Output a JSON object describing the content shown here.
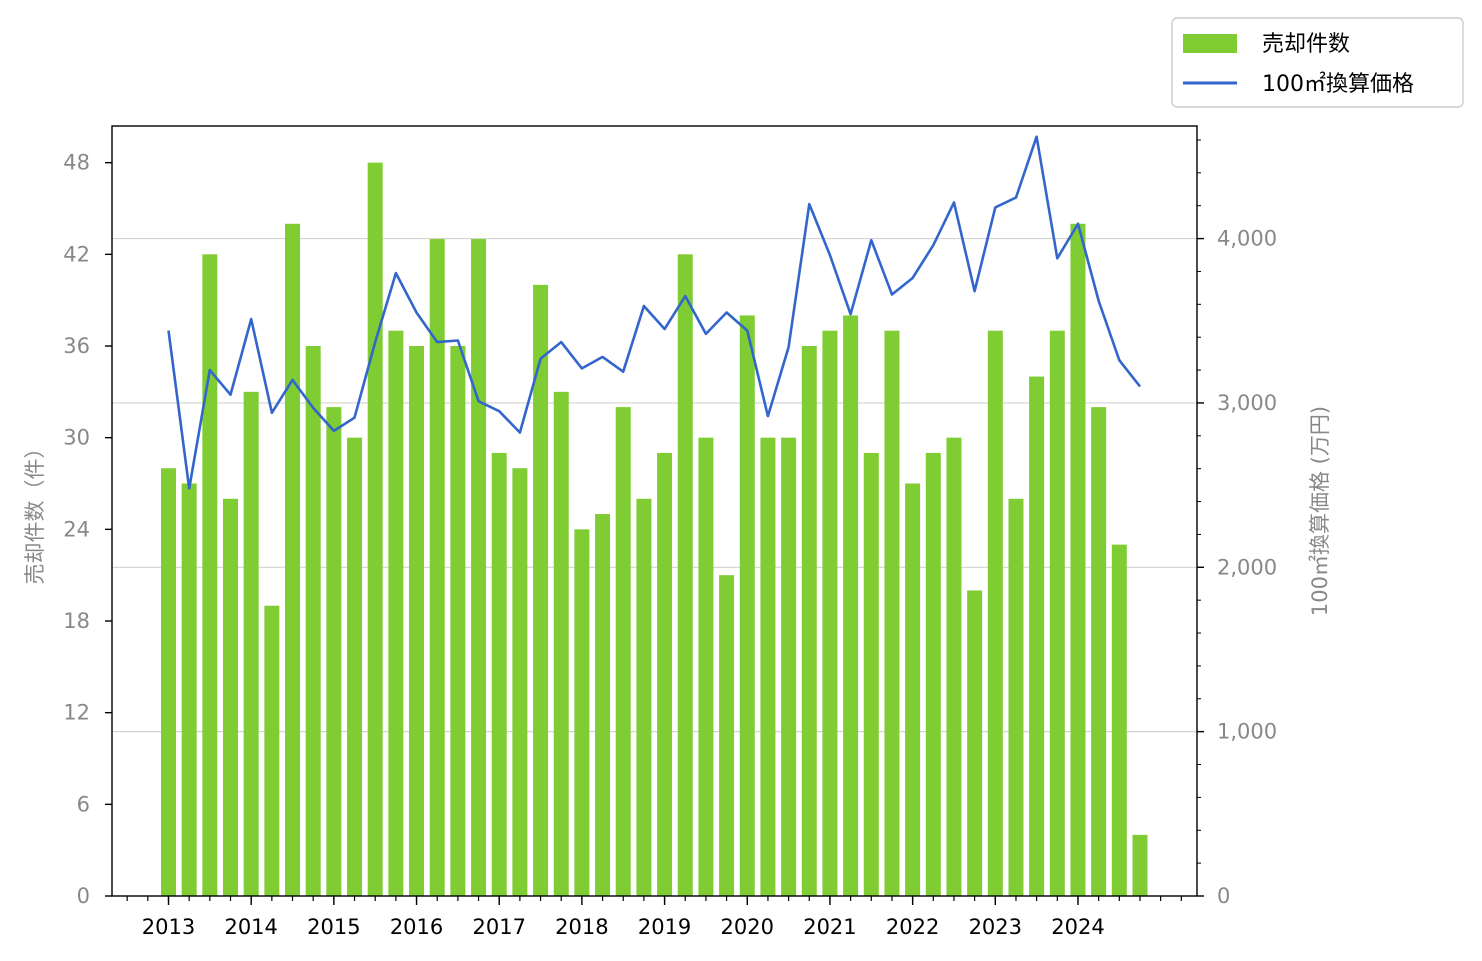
{
  "chart_data": {
    "type": "bar+line",
    "title": "",
    "x_tick_labels": [
      "2013",
      "2014",
      "2015",
      "2016",
      "2017",
      "2018",
      "2019",
      "2020",
      "2021",
      "2022",
      "2023",
      "2024"
    ],
    "left_axis": {
      "label": "売却件数（件）",
      "range": [
        0,
        50.4
      ],
      "ticks": [
        0,
        6,
        12,
        18,
        24,
        30,
        36,
        42,
        48
      ]
    },
    "right_axis": {
      "label": "100㎡換算価格 (万円)",
      "range": [
        0,
        4685
      ],
      "ticks": [
        0,
        1000,
        2000,
        3000,
        4000
      ],
      "tick_labels": [
        "0",
        "1,000",
        "2,000",
        "3,000",
        "4,000"
      ]
    },
    "grid": "horizontal, right axis major ticks",
    "legend_position": "top-right outside",
    "series": [
      {
        "name": "売却件数",
        "type": "bar",
        "axis": "left",
        "color": "#7fcc33",
        "values": [
          28,
          27,
          42,
          26,
          33,
          19,
          44,
          36,
          32,
          30,
          48,
          37,
          36,
          43,
          36,
          43,
          29,
          28,
          40,
          33,
          24,
          25,
          32,
          26,
          29,
          42,
          30,
          21,
          38,
          30,
          30,
          36,
          37,
          38,
          29,
          37,
          27,
          29,
          30,
          20,
          37,
          26,
          34,
          37,
          44,
          32,
          23,
          4
        ]
      },
      {
        "name": "100㎡換算価格",
        "type": "line",
        "axis": "right",
        "color": "#3366cc",
        "values": [
          3440,
          2480,
          3200,
          3050,
          3510,
          2940,
          3140,
          2970,
          2830,
          2910,
          3370,
          3790,
          3550,
          3370,
          3380,
          3010,
          2950,
          2820,
          3270,
          3370,
          3210,
          3280,
          3190,
          3590,
          3450,
          3650,
          3420,
          3550,
          3440,
          2920,
          3340,
          4210,
          3900,
          3540,
          3990,
          3660,
          3760,
          3960,
          4220,
          3680,
          4190,
          4250,
          4620,
          3880,
          4090,
          3620,
          3260,
          3100
        ]
      }
    ]
  }
}
